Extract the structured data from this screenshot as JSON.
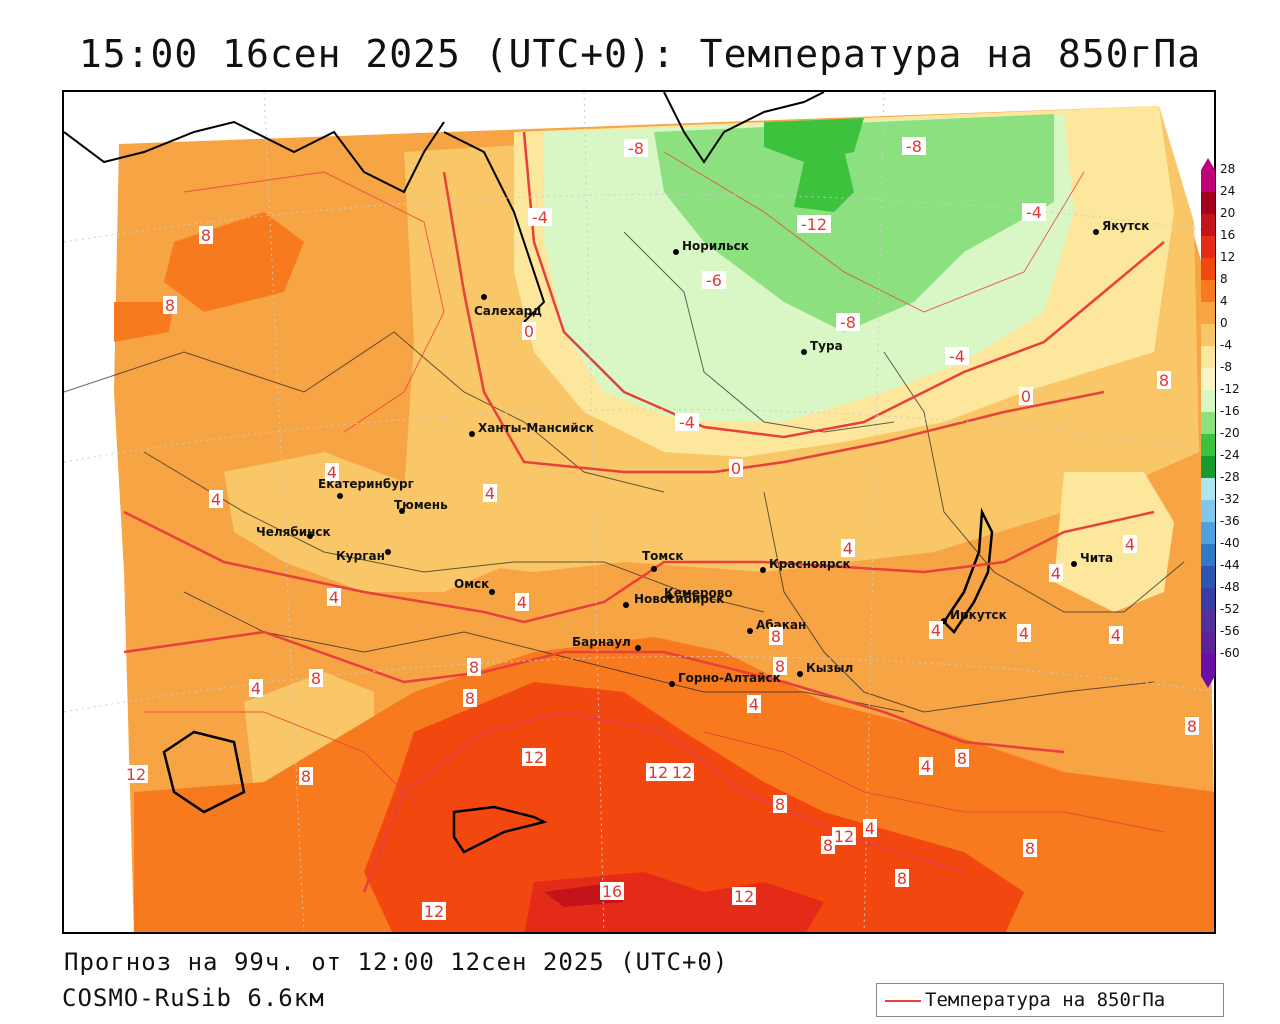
{
  "title": "15:00 16сен 2025 (UTC+0): Температура на 850гПа",
  "footer": {
    "forecast": "Прогноз на 99ч. от 12:00 12сен 2025 (UTC+0)",
    "model": "COSMO-RuSib 6.6км"
  },
  "legend": {
    "label": "Температура на 850гПа",
    "line_color": "#e8403a"
  },
  "colorbar": {
    "ticks": [
      "28",
      "24",
      "20",
      "16",
      "12",
      "8",
      "4",
      "0",
      "-4",
      "-8",
      "-12",
      "-16",
      "-20",
      "-24",
      "-28",
      "-32",
      "-36",
      "-40",
      "-44",
      "-48",
      "-52",
      "-56",
      "-60"
    ],
    "colors": [
      "#c0007a",
      "#a4001e",
      "#c4141b",
      "#e32b17",
      "#f2480f",
      "#f77a1f",
      "#f7a445",
      "#f9c767",
      "#fde79c",
      "#fff4c8",
      "#d9f7c4",
      "#8de07f",
      "#3cc23c",
      "#169c2c",
      "#aee6f0",
      "#7fc8ec",
      "#4ea1dc",
      "#3178c6",
      "#2a56b2",
      "#3a3ea4",
      "#50329a",
      "#5c2296",
      "#6a10a8"
    ]
  },
  "cities": [
    {
      "name": "Якутск"
    },
    {
      "name": "Норильск"
    },
    {
      "name": "Салехард"
    },
    {
      "name": "Тура"
    },
    {
      "name": "Ханты-Мансийск"
    },
    {
      "name": "Екатеринбург"
    },
    {
      "name": "Тюмень"
    },
    {
      "name": "Челябинск"
    },
    {
      "name": "Курган"
    },
    {
      "name": "Омск"
    },
    {
      "name": "Новосибирск"
    },
    {
      "name": "Томск"
    },
    {
      "name": "Кемерово"
    },
    {
      "name": "Красноярск"
    },
    {
      "name": "Абакан"
    },
    {
      "name": "Барнаул"
    },
    {
      "name": "Горно-Алтайск"
    },
    {
      "name": "Кызыл"
    },
    {
      "name": "Иркутск"
    },
    {
      "name": "Чита"
    }
  ],
  "isotherm_labels": [
    "8",
    "8",
    "-8",
    "-8",
    "-12",
    "-4",
    "-4",
    "-6",
    "-8",
    "-4",
    "0",
    "-4",
    "0",
    "0",
    "8",
    "4",
    "4",
    "4",
    "4",
    "4",
    "4",
    "4",
    "4",
    "4",
    "4",
    "4",
    "4",
    "8",
    "8",
    "8",
    "12",
    "12",
    "8",
    "12",
    "12",
    "16",
    "12",
    "12",
    "8",
    "8",
    "8",
    "8",
    "8",
    "4",
    "4",
    "4",
    "12",
    "8",
    "8",
    "8"
  ]
}
